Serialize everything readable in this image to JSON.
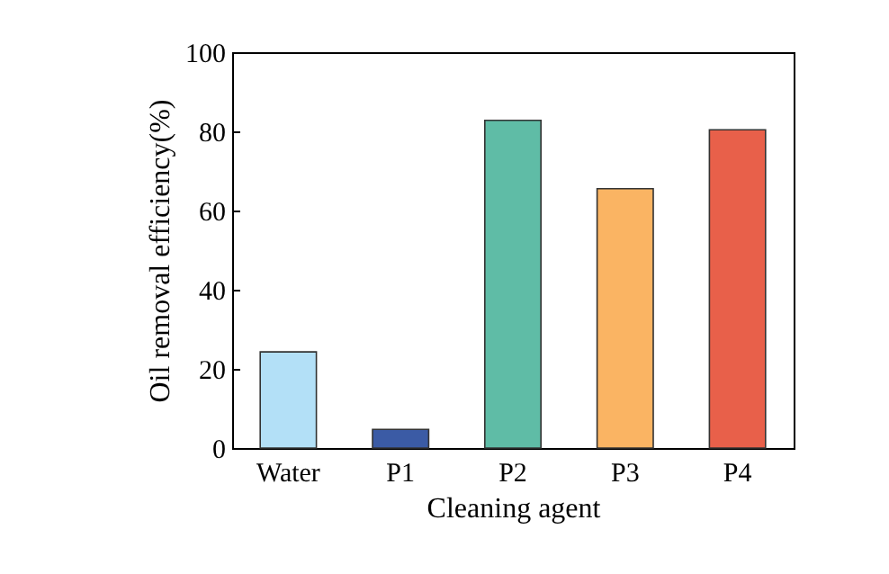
{
  "chart_data": {
    "type": "bar",
    "xlabel": "Cleaning agent",
    "ylabel": "Oil removal efficiency(%)",
    "categories": [
      "Water",
      "P1",
      "P2",
      "P3",
      "P4"
    ],
    "values": [
      24.3,
      4.7,
      82.8,
      65.5,
      80.4
    ],
    "colors": [
      "#b3e0f7",
      "#3b5ba5",
      "#5fbca6",
      "#fab463",
      "#e8604a"
    ],
    "ylim": [
      0,
      100
    ],
    "yticks": [
      0,
      20,
      40,
      60,
      80,
      100
    ],
    "grid": false
  }
}
